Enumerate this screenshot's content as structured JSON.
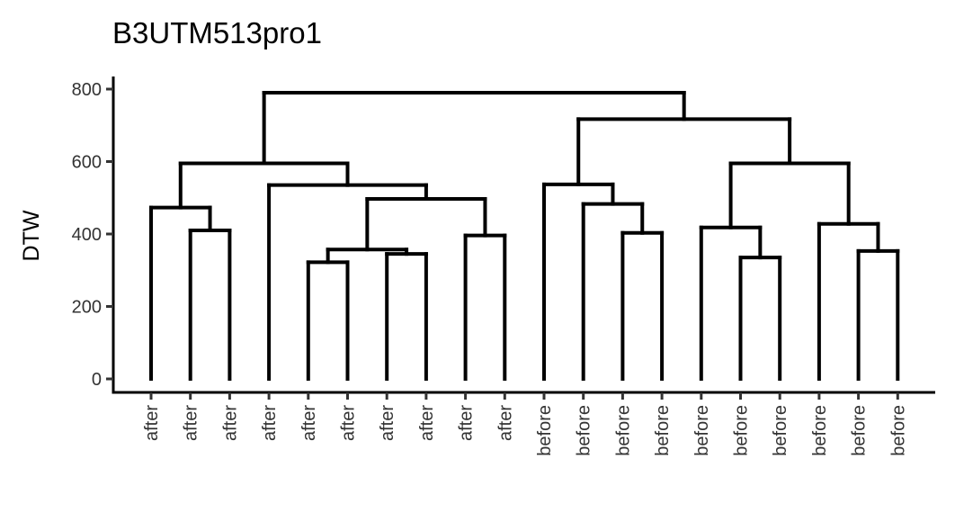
{
  "chart_data": {
    "type": "dendrogram",
    "title": "B3UTM513pro1",
    "ylabel": "DTW",
    "xlabel": "",
    "ylim": [
      0,
      800
    ],
    "yticks": [
      0,
      200,
      400,
      600,
      800
    ],
    "grid": false,
    "leaves": [
      "after",
      "after",
      "after",
      "after",
      "after",
      "after",
      "after",
      "after",
      "after",
      "after",
      "before",
      "before",
      "before",
      "before",
      "before",
      "before",
      "before",
      "before",
      "before",
      "before"
    ],
    "merges": [
      {
        "children": [
          "L2",
          "L3"
        ],
        "height": 410
      },
      {
        "children": [
          "L1",
          "M1"
        ],
        "height": 473
      },
      {
        "children": [
          "L5",
          "L6"
        ],
        "height": 322
      },
      {
        "children": [
          "L7",
          "L8"
        ],
        "height": 345
      },
      {
        "children": [
          "M3",
          "M4"
        ],
        "height": 357
      },
      {
        "children": [
          "L9",
          "L10"
        ],
        "height": 396
      },
      {
        "children": [
          "M5",
          "M6"
        ],
        "height": 497
      },
      {
        "children": [
          "L4",
          "M7"
        ],
        "height": 535
      },
      {
        "children": [
          "M2",
          "M8"
        ],
        "height": 595
      },
      {
        "children": [
          "L13",
          "L14"
        ],
        "height": 403
      },
      {
        "children": [
          "L12",
          "M10"
        ],
        "height": 483
      },
      {
        "children": [
          "L11",
          "M11"
        ],
        "height": 537
      },
      {
        "children": [
          "L16",
          "L17"
        ],
        "height": 335
      },
      {
        "children": [
          "L15",
          "M13"
        ],
        "height": 418
      },
      {
        "children": [
          "L19",
          "L20"
        ],
        "height": 353
      },
      {
        "children": [
          "L18",
          "M15"
        ],
        "height": 428
      },
      {
        "children": [
          "M14",
          "M16"
        ],
        "height": 595
      },
      {
        "children": [
          "M12",
          "M17"
        ],
        "height": 717
      },
      {
        "children": [
          "M9",
          "M18"
        ],
        "height": 790
      }
    ]
  }
}
